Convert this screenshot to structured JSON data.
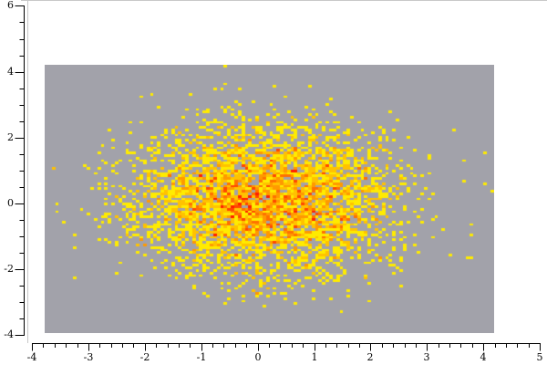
{
  "figure": {
    "background": "#ffffff",
    "frame_color": "#c8c8c8",
    "axis_color": "#000000",
    "tick_label_color": "#000000"
  },
  "chart_data": {
    "type": "heatmap",
    "subtype": "2d-histogram-of-gaussian-point-cloud",
    "title": "",
    "xlabel": "",
    "ylabel": "",
    "grid": false,
    "legend": false,
    "x_axis": {
      "range": [
        -4,
        5
      ],
      "major_ticks": [
        -4,
        -3,
        -2,
        -1,
        0,
        1,
        2,
        3,
        4,
        5
      ],
      "major_tick_labels": [
        "-4",
        "-3",
        "-2",
        "-1",
        "0",
        "1",
        "2",
        "3",
        "4",
        "5"
      ],
      "minor_tick_step": 0.2
    },
    "y_axis": {
      "range": [
        -4,
        6
      ],
      "major_ticks": [
        -4,
        -2,
        0,
        2,
        4,
        6
      ],
      "major_tick_labels": [
        "-4",
        "-2",
        "0",
        "2",
        "4",
        "6"
      ],
      "minor_tick_step": 0.5
    },
    "data_extent": {
      "x": [
        -3.77,
        4.19
      ],
      "y": [
        -3.93,
        4.21
      ]
    },
    "bins": {
      "nx": 128,
      "ny": 105
    },
    "distribution": {
      "kind": "gaussian",
      "n": 4500,
      "mean": [
        0.12,
        0.08
      ],
      "sigma": [
        1.15,
        1.08
      ],
      "seed": 20
    },
    "colors": {
      "empty_bin": "#a2a2aa",
      "count_low": "#ffeb00",
      "count_high": "#ff1e00",
      "color_span_counts": 6
    }
  }
}
